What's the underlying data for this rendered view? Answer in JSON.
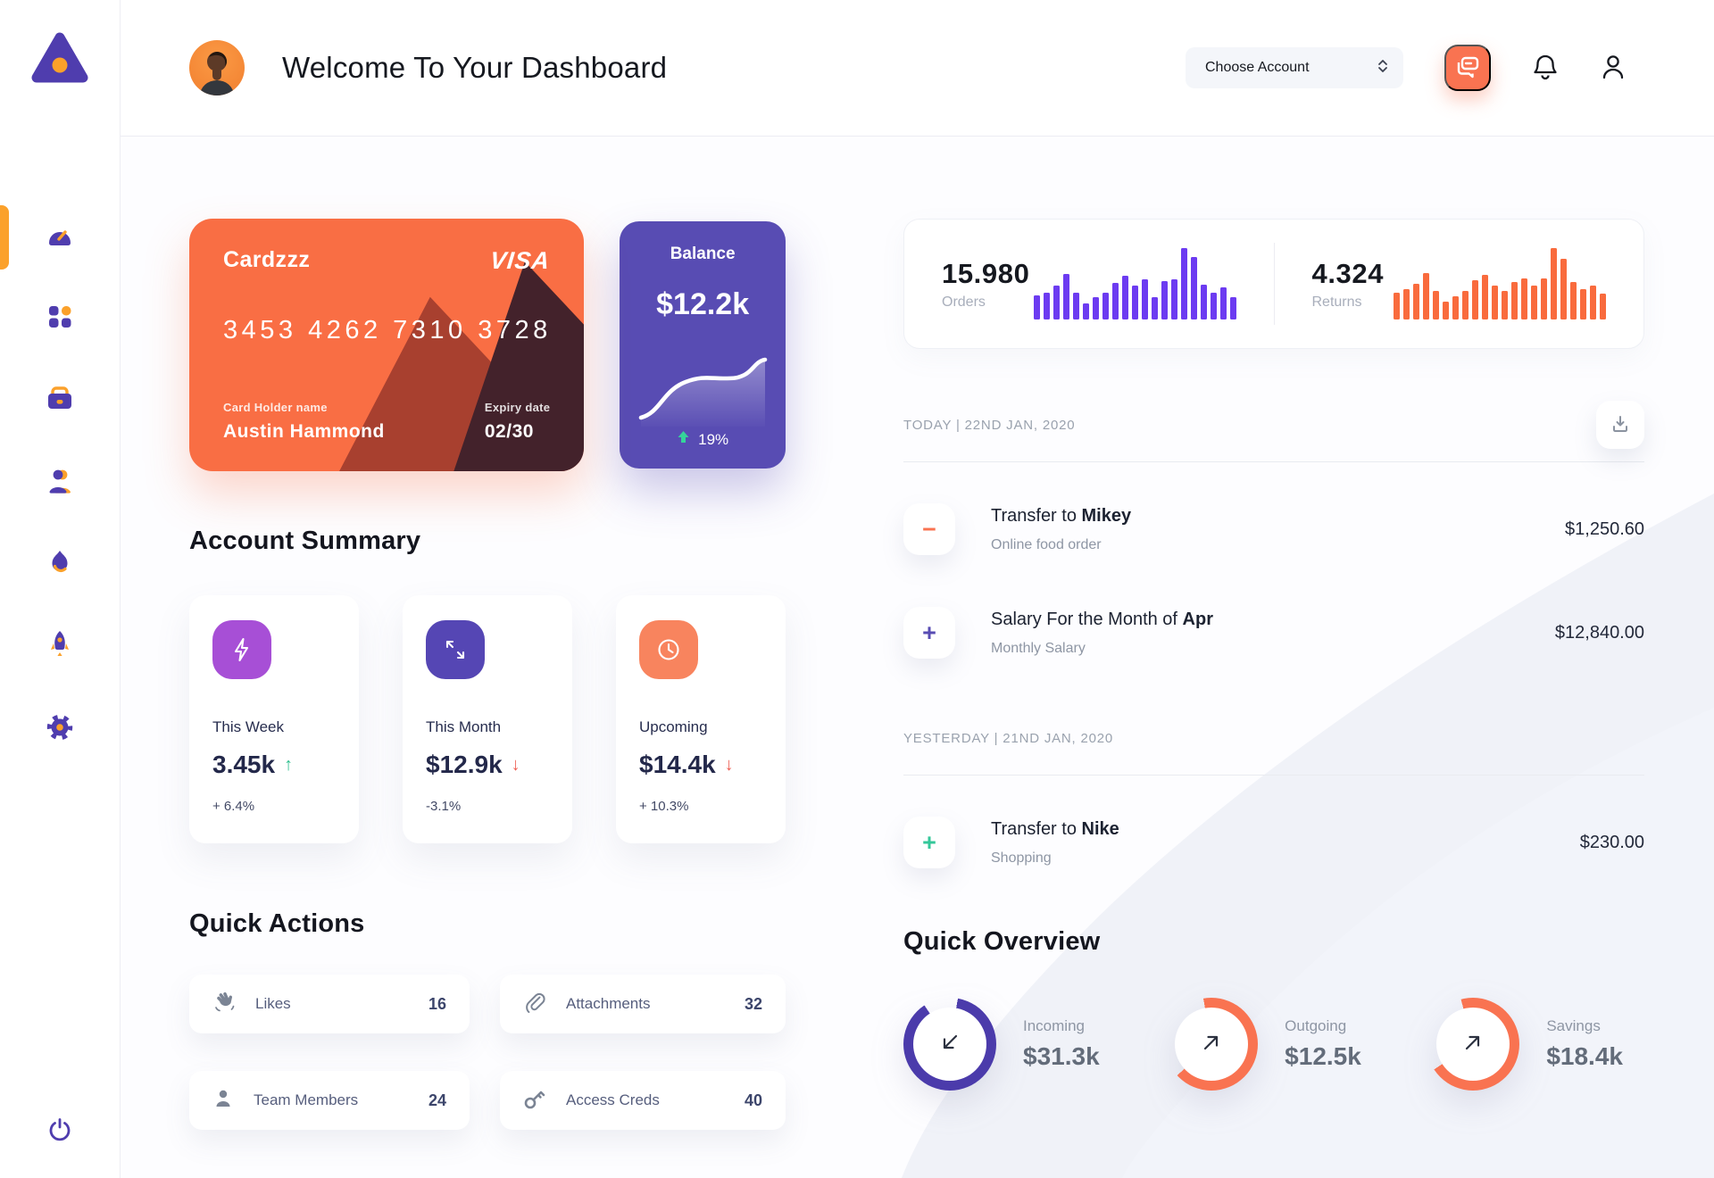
{
  "theme": {
    "accent_orange": "#f97351",
    "accent_indigo": "#584cb3",
    "bar_purple": "#6c3bf1",
    "bar_orange": "#f96b3d",
    "positive_green": "#2fbf8f",
    "negative_red": "#ee6055"
  },
  "sidebar": {
    "items": [
      {
        "icon": "gauge-icon",
        "active": true
      },
      {
        "icon": "grid-icon",
        "active": false
      },
      {
        "icon": "briefcase-icon",
        "active": false
      },
      {
        "icon": "user-icon",
        "active": false
      },
      {
        "icon": "flame-icon",
        "active": false
      },
      {
        "icon": "rocket-icon",
        "active": false
      },
      {
        "icon": "gear-icon",
        "active": false
      }
    ],
    "logout_icon": "power-icon"
  },
  "header": {
    "title": "Welcome To Your Dashboard",
    "account_select": {
      "value": "Choose Account"
    },
    "icons": [
      "chat-icon",
      "bell-icon",
      "profile-icon"
    ]
  },
  "credit_card": {
    "name": "Cardzzz",
    "brand": "VISA",
    "number": "3453 4262 7310 3728",
    "holder_label": "Card Holder name",
    "holder": "Austin Hammond",
    "expiry_label": "Expiry date",
    "expiry": "02/30"
  },
  "balance": {
    "label": "Balance",
    "value": "$12.2k",
    "change": "19%",
    "trend": "up"
  },
  "stats": {
    "orders": {
      "value": "15.980",
      "label": "Orders"
    },
    "returns": {
      "value": "4.324",
      "label": "Returns"
    }
  },
  "account_summary": {
    "title": "Account Summary",
    "cards": [
      {
        "icon": "lightning-icon",
        "icon_bg": "#a74fd6",
        "label": "This Week",
        "value": "3.45k",
        "arrow": "↑",
        "arrow_color": "#2fbf8f",
        "change": "+ 6.4%"
      },
      {
        "icon": "arrows-icon",
        "icon_bg": "#5546b4",
        "label": "This Month",
        "value": "$12.9k",
        "arrow": "↓",
        "arrow_color": "#ee6055",
        "change": "-3.1%"
      },
      {
        "icon": "clock-icon",
        "icon_bg": "#f8845e",
        "label": "Upcoming",
        "value": "$14.4k",
        "arrow": "↓",
        "arrow_color": "#ee6055",
        "change": "+ 10.3%"
      }
    ]
  },
  "quick_actions": {
    "title": "Quick Actions",
    "items": [
      {
        "icon": "wave-hand-icon",
        "label": "Likes",
        "count": "16"
      },
      {
        "icon": "paperclip-icon",
        "label": "Attachments",
        "count": "32"
      },
      {
        "icon": "member-icon",
        "label": "Team Members",
        "count": "24"
      },
      {
        "icon": "key-icon",
        "label": "Access Creds",
        "count": "40"
      }
    ]
  },
  "transactions": {
    "download_icon": "download-icon",
    "groups": [
      {
        "date": "TODAY | 22ND JAN, 2020",
        "rows": [
          {
            "sign": "−",
            "sign_color": "#f97351",
            "title_prefix": "Transfer to ",
            "title_bold": "Mikey",
            "subtitle": "Online food order",
            "amount": "$1,250.60"
          },
          {
            "sign": "+",
            "sign_color": "#584cb3",
            "title_prefix": "Salary For the Month of ",
            "title_bold": "Apr",
            "subtitle": "Monthly Salary",
            "amount": "$12,840.00"
          }
        ]
      },
      {
        "date": "YESTERDAY | 21ND JAN, 2020",
        "rows": [
          {
            "sign": "+",
            "sign_color": "#35c79a",
            "title_prefix": "Transfer to ",
            "title_bold": "Nike",
            "subtitle": "Shopping",
            "amount": "$230.00"
          }
        ]
      }
    ]
  },
  "quick_overview": {
    "title": "Quick Overview",
    "items": [
      {
        "label": "Incoming",
        "value": "$31.3k",
        "color": "#4b3bab",
        "arc_pct": 88,
        "arc_start_deg": 10,
        "arrow": "down-left-arrow-icon"
      },
      {
        "label": "Outgoing",
        "value": "$12.5k",
        "color": "#f97351",
        "arc_pct": 66,
        "arc_start_deg": -10,
        "arrow": "up-right-arrow-icon"
      },
      {
        "label": "Savings",
        "value": "$18.4k",
        "color": "#f97351",
        "arc_pct": 70,
        "arc_start_deg": -15,
        "arrow": "up-right-arrow-icon"
      }
    ]
  },
  "chart_data": [
    {
      "type": "bar",
      "title": "Orders mini bar chart",
      "values": [
        34,
        38,
        47,
        64,
        38,
        23,
        31,
        38,
        51,
        61,
        47,
        56,
        31,
        54,
        56,
        100,
        87,
        49,
        38,
        45,
        31
      ],
      "color": "#6c3bf1",
      "x": "recent periods (unlabeled sparkline)",
      "ylim": [
        0,
        100
      ]
    },
    {
      "type": "bar",
      "title": "Returns mini bar chart",
      "values": [
        38,
        42,
        50,
        65,
        40,
        25,
        33,
        40,
        55,
        62,
        48,
        40,
        52,
        58,
        48,
        58,
        100,
        85,
        52,
        42,
        48,
        36
      ],
      "color": "#f96b3d",
      "x": "recent periods (unlabeled sparkline)",
      "ylim": [
        0,
        100
      ]
    },
    {
      "type": "line",
      "title": "Balance trend sparkline ($12.2k, +19%)",
      "values": [
        15,
        16,
        20,
        30,
        42,
        50,
        52,
        52,
        51,
        52,
        55,
        62,
        70,
        68,
        72
      ],
      "color": "#ffffff",
      "ylim": [
        0,
        100
      ]
    },
    {
      "type": "pie",
      "title": "Quick Overview rings",
      "series": [
        {
          "name": "Incoming",
          "value_label": "$31.3k",
          "ring_fill_pct": 88,
          "color": "#4b3bab"
        },
        {
          "name": "Outgoing",
          "value_label": "$12.5k",
          "ring_fill_pct": 66,
          "color": "#f97351"
        },
        {
          "name": "Savings",
          "value_label": "$18.4k",
          "ring_fill_pct": 70,
          "color": "#f97351"
        }
      ]
    }
  ]
}
